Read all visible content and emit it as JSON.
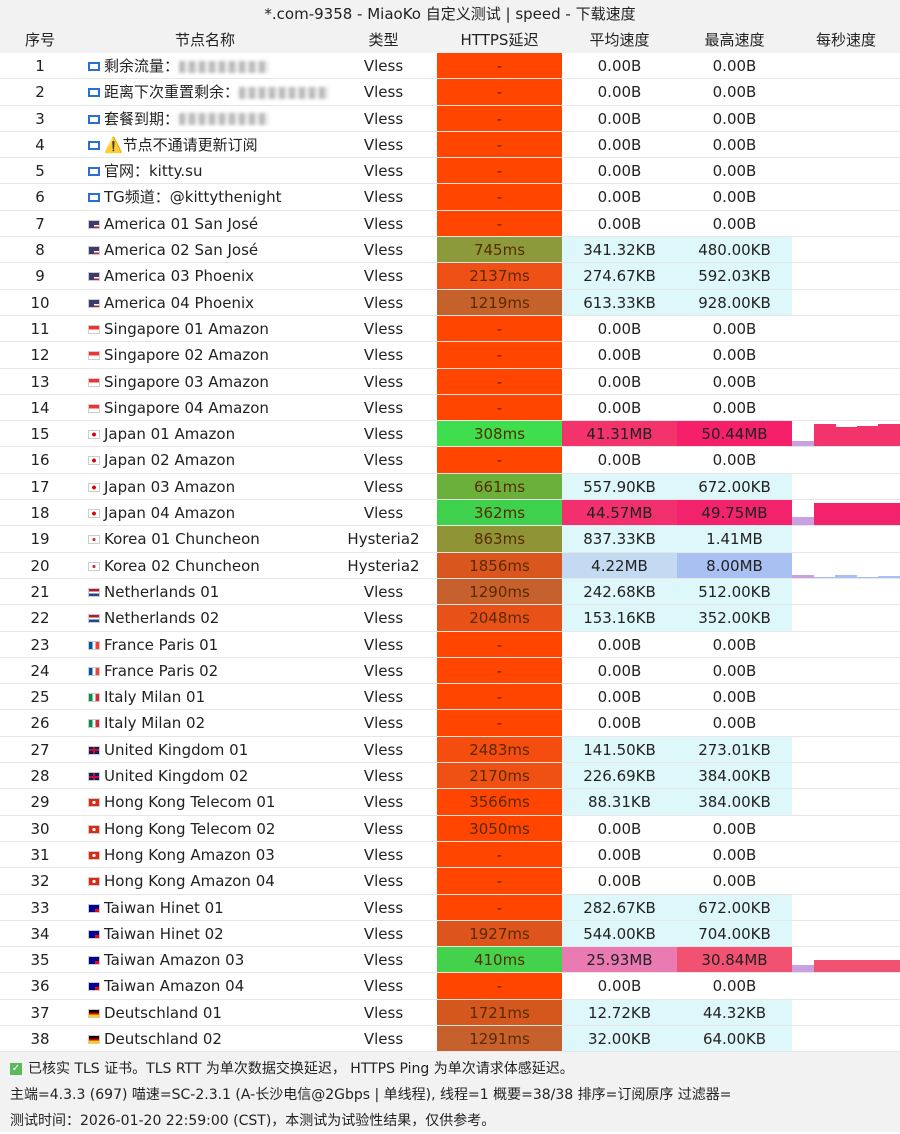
{
  "title": "*.com-9358 - MiaoKo 自定义测试 | speed - 下载速度",
  "headers": [
    "序号",
    "节点名称",
    "类型",
    "HTTPS延迟",
    "平均速度",
    "最高速度",
    "每秒速度"
  ],
  "rows": [
    [
      1,
      "info",
      "剩余流量：",
      "Vless",
      "-",
      "0.00B",
      "0.00B",
      "#ff4500",
      "#ffffff",
      "#ffffff"
    ],
    [
      2,
      "info",
      "距离下次重置剩余：",
      "Vless",
      "-",
      "0.00B",
      "0.00B",
      "#ff4500",
      "#ffffff",
      "#ffffff"
    ],
    [
      3,
      "info",
      "套餐到期：",
      "Vless",
      "-",
      "0.00B",
      "0.00B",
      "#ff4500",
      "#ffffff",
      "#ffffff"
    ],
    [
      4,
      "info",
      "⚠️节点不通请更新订阅",
      "Vless",
      "-",
      "0.00B",
      "0.00B",
      "#ff4500",
      "#ffffff",
      "#ffffff"
    ],
    [
      5,
      "info",
      "官网：kitty.su",
      "Vless",
      "-",
      "0.00B",
      "0.00B",
      "#ff4500",
      "#ffffff",
      "#ffffff"
    ],
    [
      6,
      "info",
      "TG频道：@kittythenight",
      "Vless",
      "-",
      "0.00B",
      "0.00B",
      "#ff4500",
      "#ffffff",
      "#ffffff"
    ],
    [
      7,
      "us",
      "America 01 San José",
      "Vless",
      "-",
      "0.00B",
      "0.00B",
      "#ff4500",
      "#ffffff",
      "#ffffff"
    ],
    [
      8,
      "us",
      "America 02 San José",
      "Vless",
      "745ms",
      "341.32KB",
      "480.00KB",
      "#8c9a3c",
      "#def7fa",
      "#def7fa"
    ],
    [
      9,
      "us",
      "America 03 Phoenix",
      "Vless",
      "2137ms",
      "274.67KB",
      "592.03KB",
      "#ee5016",
      "#def7fa",
      "#def7fa"
    ],
    [
      10,
      "us",
      "America 04 Phoenix",
      "Vless",
      "1219ms",
      "613.33KB",
      "928.00KB",
      "#c5622c",
      "#def7fa",
      "#def7fa"
    ],
    [
      11,
      "sg",
      "Singapore 01 Amazon",
      "Vless",
      "-",
      "0.00B",
      "0.00B",
      "#ff4500",
      "#ffffff",
      "#ffffff"
    ],
    [
      12,
      "sg",
      "Singapore 02 Amazon",
      "Vless",
      "-",
      "0.00B",
      "0.00B",
      "#ff4500",
      "#ffffff",
      "#ffffff"
    ],
    [
      13,
      "sg",
      "Singapore 03 Amazon",
      "Vless",
      "-",
      "0.00B",
      "0.00B",
      "#ff4500",
      "#ffffff",
      "#ffffff"
    ],
    [
      14,
      "sg",
      "Singapore 04 Amazon",
      "Vless",
      "-",
      "0.00B",
      "0.00B",
      "#ff4500",
      "#ffffff",
      "#ffffff"
    ],
    [
      15,
      "jp",
      "Japan 01 Amazon",
      "Vless",
      "308ms",
      "41.31MB",
      "50.44MB",
      "#3ede4e",
      "#f2336c",
      "#f51f6a"
    ],
    [
      16,
      "jp",
      "Japan 02 Amazon",
      "Vless",
      "-",
      "0.00B",
      "0.00B",
      "#ff4500",
      "#ffffff",
      "#ffffff"
    ],
    [
      17,
      "jp",
      "Japan 03 Amazon",
      "Vless",
      "661ms",
      "557.90KB",
      "672.00KB",
      "#6cb03c",
      "#def7fa",
      "#def7fa"
    ],
    [
      18,
      "jp",
      "Japan 04 Amazon",
      "Vless",
      "362ms",
      "44.57MB",
      "49.75MB",
      "#3fd04e",
      "#f2306e",
      "#f2226c"
    ],
    [
      19,
      "kr",
      "Korea 01 Chuncheon",
      "Hysteria2",
      "863ms",
      "837.33KB",
      "1.41MB",
      "#8f9436",
      "#def7fa",
      "#def7fa"
    ],
    [
      20,
      "kr",
      "Korea 02 Chuncheon",
      "Hysteria2",
      "1856ms",
      "4.22MB",
      "8.00MB",
      "#d9561e",
      "#c4daf2",
      "#a9c0f2"
    ],
    [
      21,
      "nl",
      "Netherlands 01",
      "Vless",
      "1290ms",
      "242.68KB",
      "512.00KB",
      "#c6602c",
      "#def7fa",
      "#def7fa"
    ],
    [
      22,
      "nl",
      "Netherlands 02",
      "Vless",
      "2048ms",
      "153.16KB",
      "352.00KB",
      "#e85218",
      "#def7fa",
      "#def7fa"
    ],
    [
      23,
      "fr",
      "France Paris 01",
      "Vless",
      "-",
      "0.00B",
      "0.00B",
      "#ff4500",
      "#ffffff",
      "#ffffff"
    ],
    [
      24,
      "fr",
      "France Paris 02",
      "Vless",
      "-",
      "0.00B",
      "0.00B",
      "#ff4500",
      "#ffffff",
      "#ffffff"
    ],
    [
      25,
      "it",
      "Italy Milan 01",
      "Vless",
      "-",
      "0.00B",
      "0.00B",
      "#ff4500",
      "#ffffff",
      "#ffffff"
    ],
    [
      26,
      "it",
      "Italy Milan 02",
      "Vless",
      "-",
      "0.00B",
      "0.00B",
      "#ff4500",
      "#ffffff",
      "#ffffff"
    ],
    [
      27,
      "gb",
      "United Kingdom 01",
      "Vless",
      "2483ms",
      "141.50KB",
      "273.01KB",
      "#f54c10",
      "#def7fa",
      "#def7fa"
    ],
    [
      28,
      "gb",
      "United Kingdom 02",
      "Vless",
      "2170ms",
      "226.69KB",
      "384.00KB",
      "#ef5014",
      "#def7fa",
      "#def7fa"
    ],
    [
      29,
      "hk",
      "Hong Kong Telecom 01",
      "Vless",
      "3566ms",
      "88.31KB",
      "384.00KB",
      "#ff4500",
      "#def7fa",
      "#def7fa"
    ],
    [
      30,
      "hk",
      "Hong Kong Telecom 02",
      "Vless",
      "3050ms",
      "0.00B",
      "0.00B",
      "#ff4500",
      "#ffffff",
      "#ffffff"
    ],
    [
      31,
      "hk",
      "Hong Kong Amazon 03",
      "Vless",
      "-",
      "0.00B",
      "0.00B",
      "#ff4500",
      "#ffffff",
      "#ffffff"
    ],
    [
      32,
      "hk",
      "Hong Kong Amazon 04",
      "Vless",
      "-",
      "0.00B",
      "0.00B",
      "#ff4500",
      "#ffffff",
      "#ffffff"
    ],
    [
      33,
      "tw",
      "Taiwan Hinet 01",
      "Vless",
      "-",
      "282.67KB",
      "672.00KB",
      "#ff4500",
      "#def7fa",
      "#def7fa"
    ],
    [
      34,
      "tw",
      "Taiwan Hinet 02",
      "Vless",
      "1927ms",
      "544.00KB",
      "704.00KB",
      "#dd541c",
      "#def7fa",
      "#def7fa"
    ],
    [
      35,
      "tw",
      "Taiwan Amazon 03",
      "Vless",
      "410ms",
      "25.93MB",
      "30.84MB",
      "#44d24c",
      "#e97bb2",
      "#f25272"
    ],
    [
      36,
      "tw",
      "Taiwan Amazon 04",
      "Vless",
      "-",
      "0.00B",
      "0.00B",
      "#ff4500",
      "#ffffff",
      "#ffffff"
    ],
    [
      37,
      "de",
      "Deutschland 01",
      "Vless",
      "1721ms",
      "12.72KB",
      "44.32KB",
      "#d4581e",
      "#def7fa",
      "#def7fa"
    ],
    [
      38,
      "de",
      "Deutschland 02",
      "Vless",
      "1291ms",
      "32.00KB",
      "64.00KB",
      "#c6602c",
      "#def7fa",
      "#def7fa"
    ]
  ],
  "per_second": {
    "15": {
      "color": "#f2336c",
      "values": [
        0.2,
        0.9,
        0.75,
        0.8,
        0.9
      ]
    },
    "18": {
      "color": "#f2226c",
      "values": [
        0.35,
        0.9,
        0.9,
        0.9,
        0.9
      ]
    },
    "20": {
      "color": "#a9c0f2",
      "values": [
        0.1,
        0.05,
        0.1,
        0.05,
        0.08
      ]
    },
    "35": {
      "color": "#f25272",
      "values": [
        0.3,
        0.5,
        0.5,
        0.5,
        0.5
      ]
    }
  },
  "footer": {
    "line1": "已核实 TLS 证书。TLS RTT 为单次数据交换延迟， HTTPS Ping 为单次请求体感延迟。",
    "line2": "主端=4.3.3 (697) 喵速=SC-2.3.1 (A-长沙电信@2Gbps | 单线程), 线程=1 概要=38/38 排序=订阅原序 过滤器=",
    "line3": "测试时间：2026-01-20 22:59:00 (CST)，本测试为试验性结果，仅供参考。"
  }
}
